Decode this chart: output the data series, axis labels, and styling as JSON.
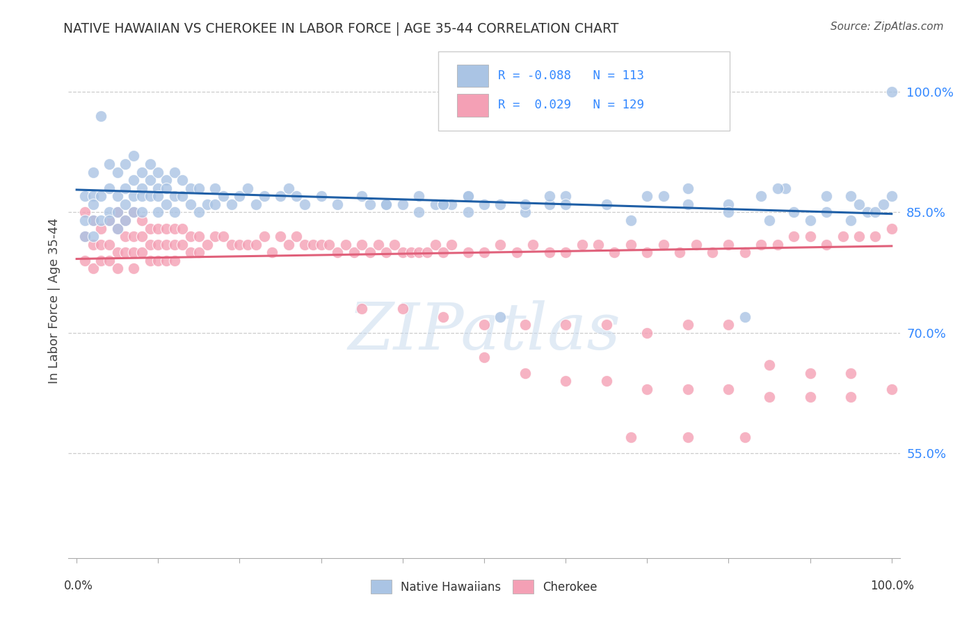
{
  "title": "NATIVE HAWAIIAN VS CHEROKEE IN LABOR FORCE | AGE 35-44 CORRELATION CHART",
  "source": "Source: ZipAtlas.com",
  "ylabel": "In Labor Force | Age 35-44",
  "ytick_labels": [
    "55.0%",
    "70.0%",
    "85.0%",
    "100.0%"
  ],
  "ytick_values": [
    0.55,
    0.7,
    0.85,
    1.0
  ],
  "xlim": [
    0.0,
    1.0
  ],
  "ylim": [
    0.42,
    1.06
  ],
  "legend_r_blue": "-0.088",
  "legend_n_blue": "113",
  "legend_r_pink": "0.029",
  "legend_n_pink": "129",
  "blue_color": "#aac4e4",
  "pink_color": "#f4a0b5",
  "blue_line_color": "#1f5fa6",
  "pink_line_color": "#e0607a",
  "watermark": "ZIPatlas",
  "background_color": "#ffffff",
  "blue_trend_start": 0.878,
  "blue_trend_end": 0.848,
  "pink_trend_start": 0.792,
  "pink_trend_end": 0.808,
  "blue_x": [
    0.01,
    0.01,
    0.01,
    0.02,
    0.02,
    0.02,
    0.02,
    0.02,
    0.03,
    0.03,
    0.03,
    0.04,
    0.04,
    0.04,
    0.04,
    0.05,
    0.05,
    0.05,
    0.05,
    0.06,
    0.06,
    0.06,
    0.06,
    0.07,
    0.07,
    0.07,
    0.07,
    0.08,
    0.08,
    0.08,
    0.08,
    0.09,
    0.09,
    0.09,
    0.1,
    0.1,
    0.1,
    0.1,
    0.11,
    0.11,
    0.11,
    0.12,
    0.12,
    0.12,
    0.13,
    0.13,
    0.14,
    0.14,
    0.15,
    0.15,
    0.16,
    0.17,
    0.17,
    0.18,
    0.19,
    0.2,
    0.21,
    0.22,
    0.23,
    0.25,
    0.26,
    0.27,
    0.28,
    0.3,
    0.32,
    0.35,
    0.38,
    0.4,
    0.42,
    0.44,
    0.46,
    0.48,
    0.5,
    0.52,
    0.55,
    0.58,
    0.6,
    0.65,
    0.7,
    0.75,
    0.8,
    0.82,
    0.85,
    0.87,
    0.9,
    0.92,
    0.95,
    0.97,
    1.0,
    0.36,
    0.45,
    0.48,
    0.55,
    0.58,
    0.6,
    0.68,
    0.72,
    0.75,
    0.8,
    0.84,
    0.86,
    0.88,
    0.92,
    0.95,
    0.96,
    0.98,
    0.99,
    1.0,
    0.38,
    0.42,
    0.45,
    0.48,
    0.52
  ],
  "blue_y": [
    0.87,
    0.84,
    0.82,
    0.9,
    0.87,
    0.84,
    0.82,
    0.86,
    0.87,
    0.84,
    0.97,
    0.91,
    0.88,
    0.85,
    0.84,
    0.9,
    0.87,
    0.85,
    0.83,
    0.91,
    0.88,
    0.86,
    0.84,
    0.92,
    0.89,
    0.87,
    0.85,
    0.9,
    0.88,
    0.87,
    0.85,
    0.91,
    0.89,
    0.87,
    0.9,
    0.88,
    0.87,
    0.85,
    0.89,
    0.88,
    0.86,
    0.9,
    0.87,
    0.85,
    0.89,
    0.87,
    0.88,
    0.86,
    0.88,
    0.85,
    0.86,
    0.88,
    0.86,
    0.87,
    0.86,
    0.87,
    0.88,
    0.86,
    0.87,
    0.87,
    0.88,
    0.87,
    0.86,
    0.87,
    0.86,
    0.87,
    0.86,
    0.86,
    0.87,
    0.86,
    0.86,
    0.87,
    0.86,
    0.72,
    0.85,
    0.86,
    0.87,
    0.86,
    0.87,
    0.86,
    0.86,
    0.72,
    0.84,
    0.88,
    0.84,
    0.85,
    0.84,
    0.85,
    1.0,
    0.86,
    0.86,
    0.85,
    0.86,
    0.87,
    0.86,
    0.84,
    0.87,
    0.88,
    0.85,
    0.87,
    0.88,
    0.85,
    0.87,
    0.87,
    0.86,
    0.85,
    0.86,
    0.87,
    0.86,
    0.85,
    0.86,
    0.87,
    0.86
  ],
  "pink_x": [
    0.01,
    0.01,
    0.01,
    0.02,
    0.02,
    0.02,
    0.03,
    0.03,
    0.03,
    0.04,
    0.04,
    0.04,
    0.05,
    0.05,
    0.05,
    0.05,
    0.06,
    0.06,
    0.06,
    0.07,
    0.07,
    0.07,
    0.07,
    0.08,
    0.08,
    0.08,
    0.09,
    0.09,
    0.09,
    0.1,
    0.1,
    0.1,
    0.11,
    0.11,
    0.11,
    0.12,
    0.12,
    0.12,
    0.13,
    0.13,
    0.14,
    0.14,
    0.15,
    0.15,
    0.16,
    0.17,
    0.18,
    0.19,
    0.2,
    0.21,
    0.22,
    0.23,
    0.24,
    0.25,
    0.26,
    0.27,
    0.28,
    0.29,
    0.3,
    0.31,
    0.32,
    0.33,
    0.34,
    0.35,
    0.36,
    0.37,
    0.38,
    0.39,
    0.4,
    0.41,
    0.42,
    0.43,
    0.44,
    0.45,
    0.46,
    0.48,
    0.5,
    0.52,
    0.54,
    0.56,
    0.58,
    0.6,
    0.62,
    0.64,
    0.66,
    0.68,
    0.7,
    0.72,
    0.74,
    0.76,
    0.78,
    0.8,
    0.82,
    0.84,
    0.86,
    0.88,
    0.9,
    0.92,
    0.94,
    0.96,
    0.98,
    1.0,
    0.35,
    0.4,
    0.45,
    0.5,
    0.55,
    0.6,
    0.65,
    0.7,
    0.75,
    0.8,
    0.85,
    0.9,
    0.95,
    0.5,
    0.55,
    0.6,
    0.65,
    0.7,
    0.75,
    0.8,
    0.85,
    0.9,
    0.95,
    1.0,
    0.68,
    0.75,
    0.82
  ],
  "pink_y": [
    0.85,
    0.82,
    0.79,
    0.84,
    0.81,
    0.78,
    0.83,
    0.81,
    0.79,
    0.84,
    0.81,
    0.79,
    0.85,
    0.83,
    0.8,
    0.78,
    0.84,
    0.82,
    0.8,
    0.85,
    0.82,
    0.8,
    0.78,
    0.84,
    0.82,
    0.8,
    0.83,
    0.81,
    0.79,
    0.83,
    0.81,
    0.79,
    0.83,
    0.81,
    0.79,
    0.83,
    0.81,
    0.79,
    0.83,
    0.81,
    0.82,
    0.8,
    0.82,
    0.8,
    0.81,
    0.82,
    0.82,
    0.81,
    0.81,
    0.81,
    0.81,
    0.82,
    0.8,
    0.82,
    0.81,
    0.82,
    0.81,
    0.81,
    0.81,
    0.81,
    0.8,
    0.81,
    0.8,
    0.81,
    0.8,
    0.81,
    0.8,
    0.81,
    0.8,
    0.8,
    0.8,
    0.8,
    0.81,
    0.8,
    0.81,
    0.8,
    0.8,
    0.81,
    0.8,
    0.81,
    0.8,
    0.8,
    0.81,
    0.81,
    0.8,
    0.81,
    0.8,
    0.81,
    0.8,
    0.81,
    0.8,
    0.81,
    0.8,
    0.81,
    0.81,
    0.82,
    0.82,
    0.81,
    0.82,
    0.82,
    0.82,
    0.83,
    0.73,
    0.73,
    0.72,
    0.71,
    0.71,
    0.71,
    0.71,
    0.7,
    0.71,
    0.71,
    0.66,
    0.65,
    0.65,
    0.67,
    0.65,
    0.64,
    0.64,
    0.63,
    0.63,
    0.63,
    0.62,
    0.62,
    0.62,
    0.63,
    0.57,
    0.57,
    0.57
  ]
}
